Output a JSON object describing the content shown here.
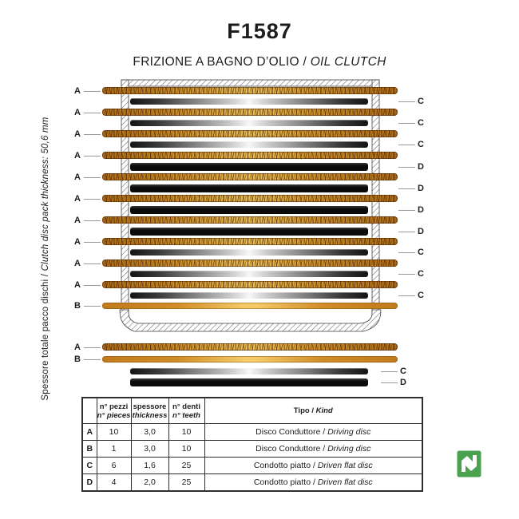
{
  "header": {
    "title": "F1587",
    "subtitle_it": "FRIZIONE A BAGNO D’OLIO / ",
    "subtitle_en": "OIL CLUTCH"
  },
  "side_note": {
    "it": "Spessore totale pacco dischi / ",
    "en": "Clutch disc pack thickness: 50,6 mm"
  },
  "diagram": {
    "stack": [
      "A",
      "C",
      "A",
      "C",
      "A",
      "C",
      "A",
      "D",
      "A",
      "D",
      "A",
      "D",
      "A",
      "D",
      "A",
      "C",
      "A",
      "C",
      "A",
      "C",
      "B"
    ],
    "legend": [
      "A",
      "B",
      "C",
      "D"
    ],
    "colors": {
      "cork": "#cf8f2a",
      "smooth_disc": "#e9b64a",
      "steel_end": "#1a1a1a",
      "steel_mid": "#f2f2f2",
      "driven_disc": "#0b0b0b",
      "lead_line": "#9a9a9a",
      "hatch_line": "#6f6f6f"
    }
  },
  "table": {
    "headers": {
      "pieces_it": "n° pezzi",
      "pieces_en": "n° pieces",
      "thickness_it": "spessore",
      "thickness_en": "thickness",
      "teeth_it": "n° denti",
      "teeth_en": "n° teeth",
      "kind_it": "Tipo / ",
      "kind_en": "Kind"
    },
    "rows": [
      {
        "key": "A",
        "pieces": "10",
        "thickness": "3,0",
        "teeth": "10",
        "kind_it": "Disco Conduttore / ",
        "kind_en": "Driving disc"
      },
      {
        "key": "B",
        "pieces": "1",
        "thickness": "3,0",
        "teeth": "10",
        "kind_it": "Disco Conduttore / ",
        "kind_en": "Driving disc"
      },
      {
        "key": "C",
        "pieces": "6",
        "thickness": "1,6",
        "teeth": "25",
        "kind_it": "Condotto piatto / ",
        "kind_en": "Driven flat disc"
      },
      {
        "key": "D",
        "pieces": "4",
        "thickness": "2,0",
        "teeth": "25",
        "kind_it": "Condotto piatto / ",
        "kind_en": "Driven flat disc"
      }
    ]
  },
  "logo": {
    "color": "#4aa24e"
  }
}
